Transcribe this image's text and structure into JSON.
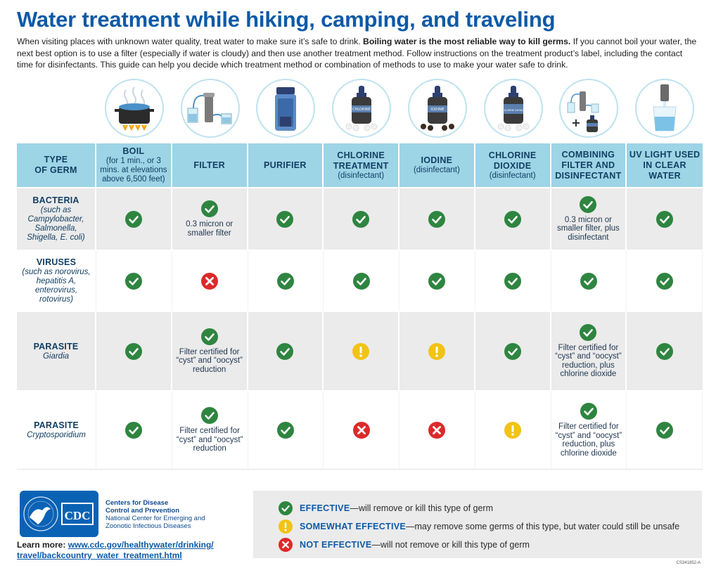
{
  "title": "Water treatment while hiking, camping, and traveling",
  "intro": {
    "part1": "When visiting places with unknown water quality, treat water to make sure it’s safe to drink.  ",
    "bold": "Boiling water is the most reliable way to kill germs.",
    "part2": " If you cannot boil your water, the next best option is to use a filter (especially if water is cloudy) and then use another treatment method. Follow instructions on the treatment product’s label, including the contact time for disinfectants. This guide can help you decide which treatment method or combination of methods to use to make your water safe to drink."
  },
  "icons": [
    {
      "name": "boiling-pot-icon"
    },
    {
      "name": "filter-icon"
    },
    {
      "name": "purifier-bottle-icon"
    },
    {
      "name": "chlorine-bottle-icon",
      "label": "CHLORINE"
    },
    {
      "name": "iodine-bottle-icon",
      "label": "IODINE"
    },
    {
      "name": "chlorine-dioxide-bottle-icon",
      "label": "CHLORINE DIOXIDE"
    },
    {
      "name": "filter-plus-disinfectant-icon"
    },
    {
      "name": "uv-light-icon"
    }
  ],
  "header": {
    "type": {
      "line1": "TYPE",
      "line2": "OF GERM"
    },
    "boil": {
      "main": "BOIL",
      "sub": "(for 1 min., or 3 mins. at elevations above 6,500 feet)"
    },
    "filter": {
      "main": "FILTER"
    },
    "purifier": {
      "main": "PURIFIER"
    },
    "chlorine": {
      "main": "CHLORINE TREATMENT",
      "sub": "(disinfectant)"
    },
    "iodine": {
      "main": "IODINE",
      "sub": "(disinfectant)"
    },
    "chlorine_dioxide": {
      "main": "CHLORINE DIOXIDE",
      "sub": "(disinfectant)"
    },
    "combining": {
      "main": "COMBINING FILTER AND DISINFECTANT"
    },
    "uv": {
      "main": "UV LIGHT USED IN CLEAR WATER"
    }
  },
  "rows": [
    {
      "germ": "BACTERIA",
      "sub": "(such as Campylobacter, Salmonella, Shigella, E. coli)",
      "cells": [
        {
          "status": "effective"
        },
        {
          "status": "effective",
          "note": "0.3 micron or smaller filter"
        },
        {
          "status": "effective"
        },
        {
          "status": "effective"
        },
        {
          "status": "effective"
        },
        {
          "status": "effective"
        },
        {
          "status": "effective",
          "note": "0.3 micron or smaller filter, plus disinfectant"
        },
        {
          "status": "effective"
        }
      ]
    },
    {
      "germ": "VIRUSES",
      "sub": "(such as norovirus, hepatitis A, enterovirus, rotovirus)",
      "cells": [
        {
          "status": "effective"
        },
        {
          "status": "not"
        },
        {
          "status": "effective"
        },
        {
          "status": "effective"
        },
        {
          "status": "effective"
        },
        {
          "status": "effective"
        },
        {
          "status": "effective"
        },
        {
          "status": "effective"
        }
      ]
    },
    {
      "germ": "PARASITE",
      "sub": "Giardia",
      "cells": [
        {
          "status": "effective"
        },
        {
          "status": "effective",
          "note": "Filter certified for “cyst” and “oocyst” reduction"
        },
        {
          "status": "effective"
        },
        {
          "status": "somewhat"
        },
        {
          "status": "somewhat"
        },
        {
          "status": "effective"
        },
        {
          "status": "effective",
          "note": "Filter certified for “cyst” and “oocyst” reduction, plus chlorine dioxide"
        },
        {
          "status": "effective"
        }
      ]
    },
    {
      "germ": "PARASITE",
      "sub": "Cryptosporidium",
      "cells": [
        {
          "status": "effective"
        },
        {
          "status": "effective",
          "note": "Filter certified for “cyst” and “oocyst” reduction"
        },
        {
          "status": "effective"
        },
        {
          "status": "not"
        },
        {
          "status": "not"
        },
        {
          "status": "somewhat"
        },
        {
          "status": "effective",
          "note": "Filter certified for “cyst” and “oocyst” reduction, plus chlorine dioxide"
        },
        {
          "status": "effective"
        }
      ]
    }
  ],
  "legend": {
    "effective": {
      "label": "EFFECTIVE",
      "desc": "—will remove or kill this type of germ"
    },
    "somewhat": {
      "label": "SOMEWHAT EFFECTIVE",
      "desc": "—may remove some germs of this type, but water could still be unsafe"
    },
    "not": {
      "label": "NOT EFFECTIVE",
      "desc": "—will not remove or kill this type of germ"
    }
  },
  "org": {
    "logo_text": "CDC",
    "line1": "Centers for Disease",
    "line2": "Control and Prevention",
    "line3": "National Center for Emerging and",
    "line4": "Zoonotic Infectious Diseases"
  },
  "learn_more": {
    "label": "Learn more: ",
    "url_line1": "www.cdc.gov/healthywater/drinking/",
    "url_line2": "travel/backcountry_water_treatment.html"
  },
  "doc_code": "CS341852-A",
  "colors": {
    "title": "#0d5aa7",
    "header_bg": "#9dd4e6",
    "effective": "#2e8540",
    "somewhat": "#f2c316",
    "not": "#dc2a2a"
  }
}
